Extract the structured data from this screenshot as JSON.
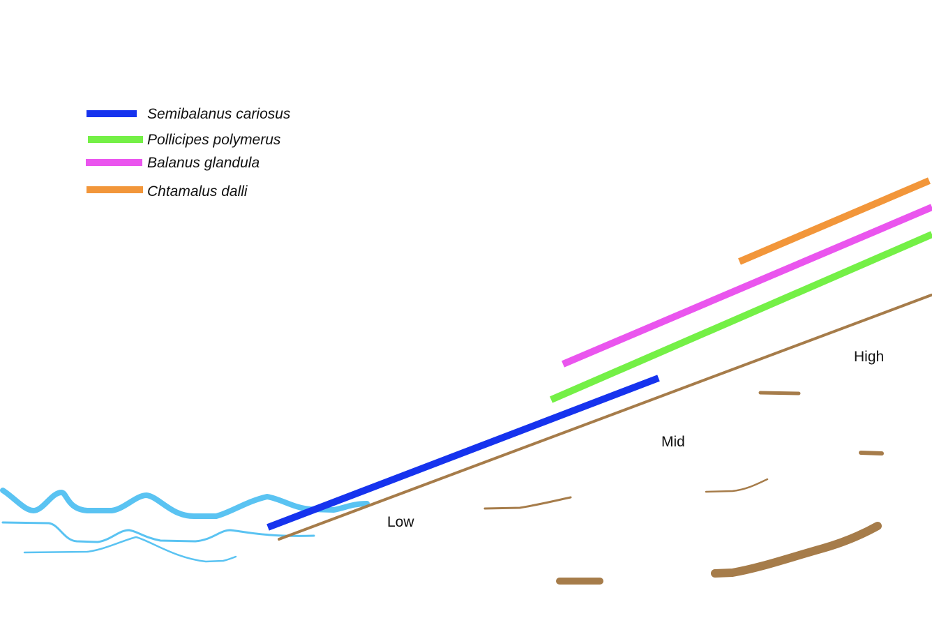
{
  "legend": {
    "items": [
      {
        "label": "Semibalanus cariosus",
        "color": "#1633ee"
      },
      {
        "label": "Pollicipes polymerus",
        "color": "#74f046"
      },
      {
        "label": "Balanus glandula",
        "color": "#ea55ee"
      },
      {
        "label": "Chtamalus dalli",
        "color": "#f2963a"
      }
    ]
  },
  "zones": {
    "low": "Low",
    "mid": "Mid",
    "high": "High"
  },
  "colors": {
    "water": "#5ac3f2",
    "rock": "#a67c4a"
  }
}
